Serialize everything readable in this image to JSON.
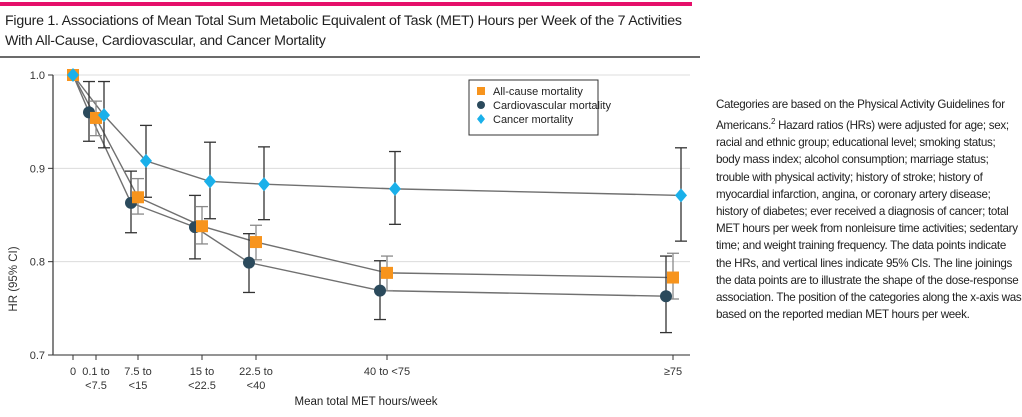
{
  "figure": {
    "title": "Figure 1. Associations of Mean Total Sum Metabolic Equivalent of Task (MET) Hours per Week of the 7 Activities With All-Cause, Cardiovascular, and Cancer Mortality",
    "caption_part1": "Categories are based on the Physical Activity Guidelines for Americans.",
    "caption_ref": "2",
    "caption_part2": " Hazard ratios (HRs) were adjusted for age; sex; racial and ethnic group; educational level; smoking status; body mass index; alcohol consumption; marriage status; trouble with physical activity; history of stroke; history of myocardial infarction, angina, or coronary artery disease; history of diabetes; ever received a diagnosis of cancer; total MET hours per week from nonleisure time activities; sedentary time; and weight training frequency. The data points indicate the HRs, and vertical lines indicate 95% CIs. The line joinings the data points are to illustrate the shape of the dose-response association. The position of the categories along the x-axis was based on the reported median MET hours per week."
  },
  "colors": {
    "accent_bar": "#e5106a",
    "all_cause": "#f7941d",
    "cardiovascular": "#2b4a5c",
    "cancer": "#1ab0ea"
  },
  "chart_data": {
    "type": "line",
    "title": "",
    "xlabel": "Mean total MET hours/week",
    "ylabel": "HR (95% CI)",
    "ylim": [
      0.7,
      1.0
    ],
    "yticks": [
      "0.7",
      "0.8",
      "0.9",
      "1.0"
    ],
    "ytick_values": [
      0.7,
      0.8,
      0.9,
      1.0
    ],
    "grid": true,
    "legend_position": "top-center",
    "categories": [
      {
        "label_line1": "0",
        "label_line2": "",
        "median_met": 0
      },
      {
        "label_line1": "0.1 to",
        "label_line2": "<7.5",
        "median_met": 3.6
      },
      {
        "label_line1": "7.5 to",
        "label_line2": "<15",
        "median_met": 11
      },
      {
        "label_line1": "15 to",
        "label_line2": "<22.5",
        "median_met": 18.3
      },
      {
        "label_line1": "22.5 to",
        "label_line2": "<40",
        "median_met": 28.8
      },
      {
        "label_line1": "40 to <75",
        "label_line2": "",
        "median_met": 53.9
      },
      {
        "label_line1": "≥75",
        "label_line2": "",
        "median_met": 109
      }
    ],
    "series": [
      {
        "name": "All-cause mortality",
        "marker": "square",
        "values": [
          1.0,
          0.954,
          0.869,
          0.838,
          0.821,
          0.788,
          0.783
        ],
        "ci_low": [
          null,
          0.935,
          0.851,
          0.819,
          0.802,
          0.769,
          0.76
        ],
        "ci_high": [
          null,
          0.972,
          0.889,
          0.859,
          0.839,
          0.806,
          0.809
        ]
      },
      {
        "name": "Cardiovascular mortality",
        "marker": "circle",
        "values": [
          1.0,
          0.96,
          0.863,
          0.837,
          0.799,
          0.769,
          0.763
        ],
        "ci_low": [
          null,
          0.929,
          0.831,
          0.803,
          0.767,
          0.738,
          0.724
        ],
        "ci_high": [
          null,
          0.993,
          0.897,
          0.871,
          0.83,
          0.801,
          0.806
        ]
      },
      {
        "name": "Cancer mortality",
        "marker": "diamond",
        "values": [
          1.0,
          0.957,
          0.908,
          0.886,
          0.883,
          0.878,
          0.871
        ],
        "ci_low": [
          null,
          0.922,
          0.869,
          0.846,
          0.845,
          0.84,
          0.822
        ],
        "ci_high": [
          null,
          0.993,
          0.946,
          0.928,
          0.923,
          0.918,
          0.922
        ]
      }
    ]
  }
}
